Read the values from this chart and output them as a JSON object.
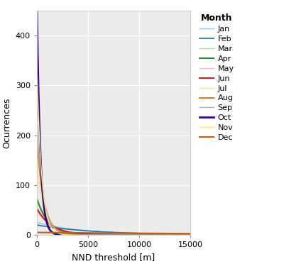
{
  "xlabel": "NND threshold [m]",
  "ylabel": "Ocurrences",
  "xlim": [
    0,
    15000
  ],
  "ylim": [
    0,
    450
  ],
  "yticks": [
    0,
    100,
    200,
    300,
    400
  ],
  "xticks": [
    0,
    5000,
    10000,
    15000
  ],
  "plot_bg": "#ebebeb",
  "fig_bg": "#ffffff",
  "grid_color": "#ffffff",
  "months": [
    "Jan",
    "Feb",
    "Mar",
    "Apr",
    "May",
    "Jun",
    "Jul",
    "Aug",
    "Sep",
    "Oct",
    "Nov",
    "Dec"
  ],
  "colors": [
    "#8ecae6",
    "#1d6fa4",
    "#b5d99c",
    "#2d8a35",
    "#f4b8c8",
    "#cc2222",
    "#fdd9a0",
    "#e87a10",
    "#b0b0b0",
    "#3a0090",
    "#f0f070",
    "#b5651d"
  ],
  "line_widths": [
    1.0,
    1.2,
    1.0,
    1.5,
    1.0,
    1.5,
    1.0,
    1.5,
    1.0,
    2.0,
    1.0,
    1.5
  ],
  "params": {
    "Jan": {
      "a": 25,
      "b": 0.00022
    },
    "Feb": {
      "a": 20,
      "b": 0.00018
    },
    "Mar": {
      "a": 72,
      "b": 0.00085
    },
    "Apr": {
      "a": 73,
      "b": 0.0009
    },
    "May": {
      "a": 48,
      "b": 0.00065
    },
    "Jun": {
      "a": 53,
      "b": 0.0007
    },
    "Jul": {
      "a": 135,
      "b": 0.0013
    },
    "Aug": {
      "a": 192,
      "b": 0.0015
    },
    "Sep": {
      "a": 215,
      "b": 0.0016
    },
    "Oct": {
      "a": 455,
      "b": 0.003
    },
    "Nov": {
      "a": 335,
      "b": 0.0022
    },
    "Dec": {
      "a": 5,
      "b": 4e-05
    }
  },
  "legend_title": "Month",
  "legend_title_fontsize": 9,
  "legend_fontsize": 8,
  "axis_label_fontsize": 9,
  "tick_fontsize": 8
}
